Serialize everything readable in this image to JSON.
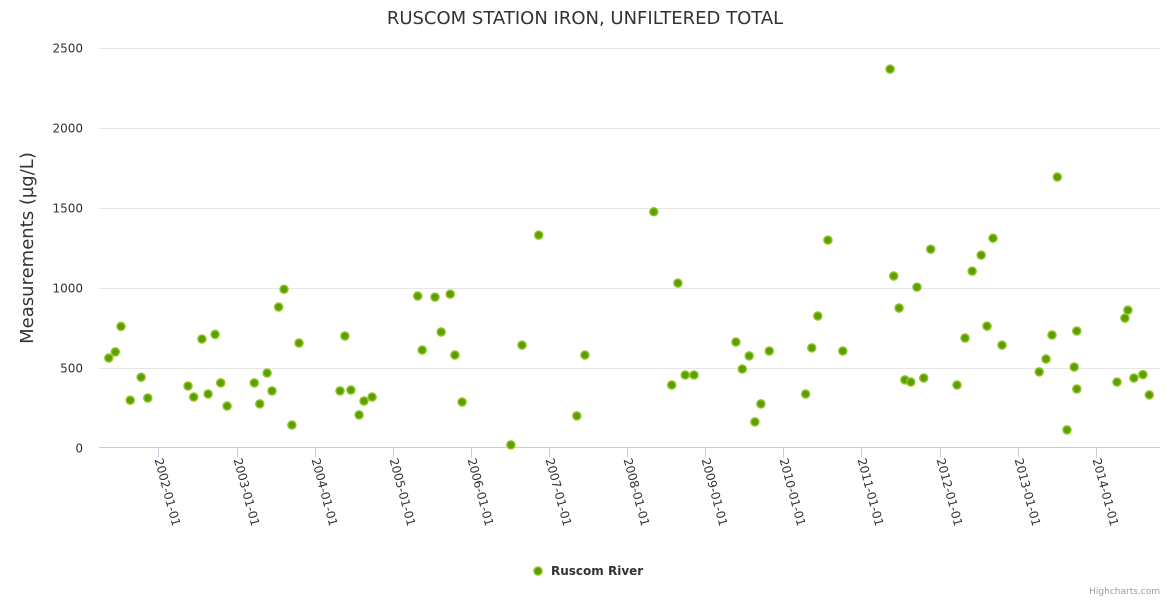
{
  "chart_data": {
    "type": "scatter",
    "title": "RUSCOM STATION IRON, UNFILTERED TOTAL",
    "xlabel": "",
    "ylabel": "Measurements (µg/L)",
    "ylim": [
      0,
      2500
    ],
    "yticks": [
      "0",
      "500",
      "1000",
      "1500",
      "2000",
      "2500"
    ],
    "xlim": [
      "2001-03-29",
      "2014-10-28"
    ],
    "xticks": [
      "2002-01-01",
      "2003-01-01",
      "2004-01-01",
      "2005-01-01",
      "2006-01-01",
      "2007-01-01",
      "2008-01-01",
      "2009-01-01",
      "2010-01-01",
      "2011-01-01",
      "2012-01-01",
      "2013-01-01",
      "2014-01-01"
    ],
    "grid": true,
    "legend_position": "bottom-center",
    "series": [
      {
        "name": "Ruscom River",
        "color": "#5a9e00",
        "points": [
          [
            "2001-05-14",
            560
          ],
          [
            "2001-06-13",
            598
          ],
          [
            "2001-07-10",
            758
          ],
          [
            "2001-08-22",
            296
          ],
          [
            "2001-10-12",
            440
          ],
          [
            "2001-11-12",
            310
          ],
          [
            "2002-05-19",
            385
          ],
          [
            "2002-06-15",
            316
          ],
          [
            "2002-07-23",
            679
          ],
          [
            "2002-08-21",
            335
          ],
          [
            "2002-09-23",
            708
          ],
          [
            "2002-10-19",
            404
          ],
          [
            "2002-11-18",
            260
          ],
          [
            "2003-03-25",
            404
          ],
          [
            "2003-04-20",
            273
          ],
          [
            "2003-05-24",
            466
          ],
          [
            "2003-06-16",
            354
          ],
          [
            "2003-07-17",
            879
          ],
          [
            "2003-08-11",
            990
          ],
          [
            "2003-09-17",
            141
          ],
          [
            "2003-10-20",
            654
          ],
          [
            "2004-04-29",
            354
          ],
          [
            "2004-05-22",
            698
          ],
          [
            "2004-06-19",
            360
          ],
          [
            "2004-07-27",
            204
          ],
          [
            "2004-08-19",
            291
          ],
          [
            "2004-09-26",
            316
          ],
          [
            "2005-04-27",
            948
          ],
          [
            "2005-05-18",
            610
          ],
          [
            "2005-07-17",
            941
          ],
          [
            "2005-08-15",
            723
          ],
          [
            "2005-09-26",
            960
          ],
          [
            "2005-10-18",
            579
          ],
          [
            "2005-11-21",
            285
          ],
          [
            "2006-07-07",
            16
          ],
          [
            "2006-08-28",
            641
          ],
          [
            "2006-11-14",
            1329
          ],
          [
            "2007-05-11",
            198
          ],
          [
            "2007-06-18",
            579
          ],
          [
            "2008-05-05",
            1475
          ],
          [
            "2008-07-28",
            391
          ],
          [
            "2008-08-26",
            1029
          ],
          [
            "2008-09-29",
            454
          ],
          [
            "2008-11-09",
            454
          ],
          [
            "2009-05-24",
            660
          ],
          [
            "2009-06-23",
            491
          ],
          [
            "2009-07-25",
            573
          ],
          [
            "2009-08-21",
            160
          ],
          [
            "2009-09-18",
            273
          ],
          [
            "2009-10-27",
            604
          ],
          [
            "2010-04-15",
            335
          ],
          [
            "2010-05-14",
            623
          ],
          [
            "2010-06-11",
            823
          ],
          [
            "2010-07-28",
            1298
          ],
          [
            "2010-10-06",
            604
          ],
          [
            "2011-05-15",
            2368
          ],
          [
            "2011-06-01",
            1073
          ],
          [
            "2011-06-26",
            873
          ],
          [
            "2011-07-23",
            423
          ],
          [
            "2011-08-20",
            410
          ],
          [
            "2011-09-18",
            1004
          ],
          [
            "2011-10-19",
            435
          ],
          [
            "2011-11-21",
            1241
          ],
          [
            "2012-03-23",
            391
          ],
          [
            "2012-04-29",
            685
          ],
          [
            "2012-06-02",
            1104
          ],
          [
            "2012-07-14",
            1204
          ],
          [
            "2012-08-10",
            760
          ],
          [
            "2012-09-07",
            1310
          ],
          [
            "2012-10-19",
            641
          ],
          [
            "2013-04-11",
            473
          ],
          [
            "2013-05-13",
            554
          ],
          [
            "2013-06-10",
            704
          ],
          [
            "2013-07-05",
            1693
          ],
          [
            "2013-08-19",
            110
          ],
          [
            "2013-09-22",
            504
          ],
          [
            "2013-10-04",
            366
          ],
          [
            "2013-10-04",
            729
          ],
          [
            "2014-04-10",
            410
          ],
          [
            "2014-05-17",
            810
          ],
          [
            "2014-05-31",
            860
          ],
          [
            "2014-06-28",
            435
          ],
          [
            "2014-08-09",
            456
          ],
          [
            "2014-09-08",
            329
          ]
        ]
      }
    ],
    "credits": "Highcharts.com"
  }
}
